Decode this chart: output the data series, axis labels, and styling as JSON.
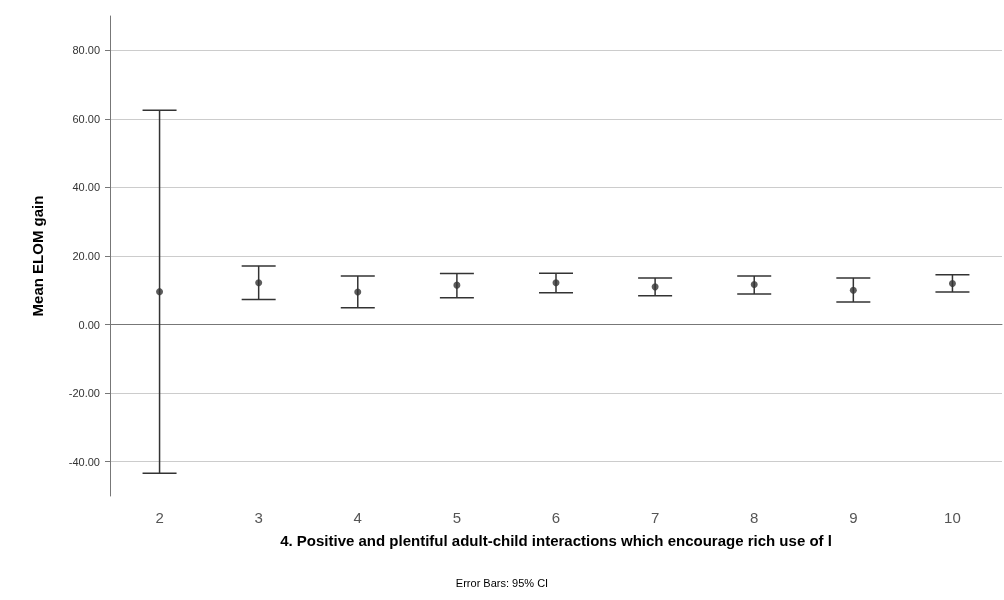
{
  "chart_data": {
    "type": "scatter",
    "xlabel": "4. Positive and plentiful adult-child interactions which encourage rich use of l",
    "ylabel": "Mean ELOM gain",
    "annotations": [
      "Error Bars: 95% CI"
    ],
    "categories": [
      "2",
      "3",
      "4",
      "5",
      "6",
      "7",
      "8",
      "9",
      "10"
    ],
    "values": [
      9.6,
      12.2,
      9.5,
      11.5,
      12.2,
      11.0,
      11.7,
      10.0,
      12.0
    ],
    "errors": [
      [
        -43.4,
        62.5
      ],
      [
        7.3,
        17.1
      ],
      [
        4.9,
        14.2
      ],
      [
        7.8,
        14.9
      ],
      [
        9.3,
        15.0
      ],
      [
        8.4,
        13.6
      ],
      [
        8.9,
        14.2
      ],
      [
        6.6,
        13.6
      ],
      [
        9.5,
        14.5
      ]
    ],
    "color": "#333333",
    "marker": "circle",
    "ylim": [
      -50,
      90
    ],
    "yticks": [
      {
        "value": -40,
        "label": "-40.00"
      },
      {
        "value": -20,
        "label": "-20.00"
      },
      {
        "value": 0,
        "label": "0.00"
      },
      {
        "value": 20,
        "label": "20.00"
      },
      {
        "value": 40,
        "label": "40.00"
      },
      {
        "value": 60,
        "label": "60.00"
      },
      {
        "value": 80,
        "label": "80.00"
      }
    ],
    "grid": "y"
  }
}
